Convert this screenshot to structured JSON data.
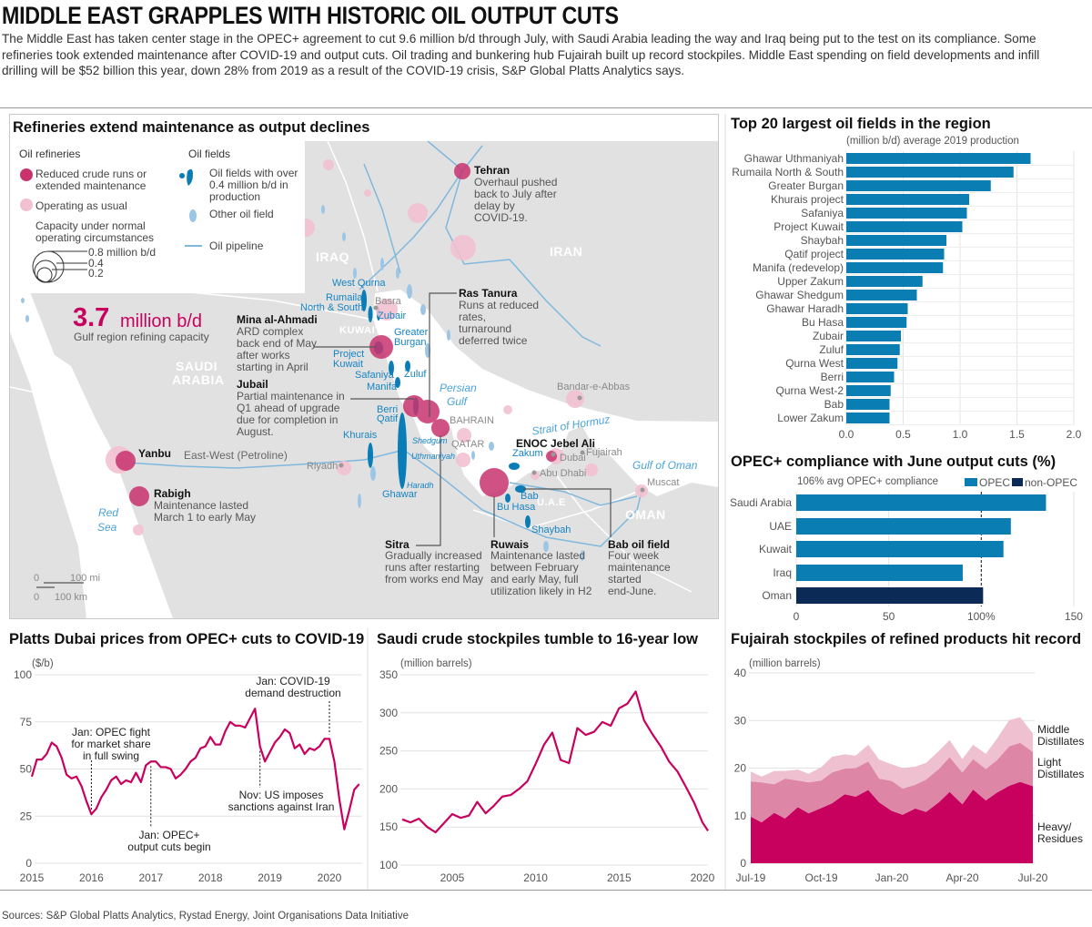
{
  "header": {
    "title": "MIDDLE EAST GRAPPLES WITH HISTORIC OIL OUTPUT CUTS",
    "intro": "The Middle East has taken center stage in the OPEC+ agreement to cut 9.6 million b/d through July, with Saudi Arabia leading the way and Iraq being put to the test on its compliance. Some refineries took extended maintenance after COVID-19 and output cuts. Oil trading and bunkering hub Fujairah built up record stockpiles. Middle East spending on field developments and infill drilling will be $52 billion this year, down 28% from 2019 as a result of the COVID-19 crisis, S&P Global Platts Analytics says."
  },
  "colors": {
    "accent": "#c8005e",
    "opec": "#0a7db3",
    "non_opec": "#0b2a55",
    "field": "#0a7db7",
    "field_light": "#9cc6e6",
    "land": "#e1e1e1",
    "pipeline": "#7fb8de",
    "refinery_reduced": "#c8336e",
    "refinery_normal": "#f2c1d1"
  },
  "map": {
    "title": "Refineries extend maintenance as output declines",
    "legend": {
      "refineries_title": "Oil refineries",
      "reduced": "Reduced crude runs or\nextended maintenance",
      "usual": "Operating as usual",
      "capacity": "Capacity under normal\noperating circumstances",
      "cap_08": "0.8 million b/d",
      "cap_04": "0.4",
      "cap_02": "0.2",
      "fields_title": "Oil fields",
      "big_field": "Oil fields with over\n0.4 million b/d in\nproduction",
      "other_field": "Other oil field",
      "pipeline": "Oil pipeline"
    },
    "capacity_value": "3.7",
    "capacity_unit": "million b/d",
    "capacity_label": "Gulf region refining capacity",
    "countries": {
      "iraq": "IRAQ",
      "iran": "IRAN",
      "saudi1": "SAUDI",
      "saudi2": "ARABIA",
      "kuwait": "KUWAIT",
      "bahrain": "BAHRAIN",
      "qatar": "QATAR",
      "uae": "U.A.E",
      "oman": "OMAN"
    },
    "seas": {
      "persian1": "Persian",
      "persian2": "Gulf",
      "red1": "Red",
      "red2": "Sea",
      "hormuz": "Strait of Hormuz",
      "oman": "Gulf of Oman"
    },
    "cities": {
      "basra": "Basra",
      "riyadh": "Riyadh",
      "dubai": "Dubai",
      "fujairah": "Fujairah",
      "abudhabi": "Abu Dhabi",
      "muscat": "Muscat",
      "bandar": "Bandar-e-Abbas"
    },
    "fields": {
      "west_qurna": "West Qurna",
      "rumaila1": "Rumaila",
      "rumaila2": "North & South",
      "zubair": "Zubair",
      "burgan1": "Greater",
      "burgan2": "Burgan",
      "pk1": "Project",
      "pk2": "Kuwait",
      "safaniya": "Safaniya",
      "zuluf": "Zuluf",
      "manifa": "Manifa",
      "berri": "Berri",
      "qatif": "Qatif",
      "khurais": "Khurais",
      "shedgum": "Shedgum",
      "uthmaniyah": "Uthmaniyah",
      "haradh": "Haradh",
      "ghawar": "Ghawar",
      "zakum": "Zakum",
      "bab": "Bab",
      "buhasa": "Bu Hasa",
      "shaybah": "Shaybah"
    },
    "pipeline_label": "East-West (Petroline)",
    "scale": {
      "zero_mi": "0",
      "mi": "100 mi",
      "zero_km": "0",
      "km": "100 km"
    },
    "annotations": {
      "tehran": {
        "name": "Tehran",
        "text": "Overhaul pushed\nback to July after\ndelay by\nCOVID-19."
      },
      "ras_tanura": {
        "name": "Ras Tanura",
        "text": "Runs at reduced\nrates,\nturnaround\ndeferred twice"
      },
      "mina": {
        "name": "Mina al-Ahmadi",
        "text": "ARD complex\nback end of May\nafter works\nstarting in April"
      },
      "jubail": {
        "name": "Jubail",
        "text": "Partial maintenance in\nQ1 ahead of upgrade\ndue for completion in\nAugust."
      },
      "yanbu": {
        "name": "Yanbu"
      },
      "rabigh": {
        "name": "Rabigh",
        "text": "Maintenance lasted\nMarch 1 to early May"
      },
      "enoc": {
        "name": "ENOC Jebel Ali"
      },
      "sitra": {
        "name": "Sitra",
        "text": "Gradually increased\nruns after restarting\nfrom works end May"
      },
      "ruwais": {
        "name": "Ruwais",
        "text": "Maintenance lasted\nbetween February\nand early May, full\nutilization likely in H2"
      },
      "bab": {
        "name": "Bab oil field",
        "text": "Four week\nmaintenance\nstarted\nend-June."
      }
    }
  },
  "chart_data": [
    {
      "id": "fields",
      "type": "bar",
      "orientation": "horizontal",
      "title": "Top 20 largest oil fields in the region",
      "subtitle": "(million b/d) average 2019 production",
      "categories": [
        "Ghawar Uthmaniyah",
        "Rumaila North & South",
        "Greater Burgan",
        "Khurais project",
        "Safaniya",
        "Project Kuwait",
        "Shaybah",
        "Qatif project",
        "Manifa (redevelop)",
        "Upper Zakum",
        "Ghawar Shedgum",
        "Ghawar Haradh",
        "Bu Hasa",
        "Zubair",
        "Zuluf",
        "Qurna West",
        "Berri",
        "Qurna West-2",
        "Bab",
        "Lower Zakum"
      ],
      "values": [
        1.62,
        1.47,
        1.27,
        1.08,
        1.06,
        1.02,
        0.88,
        0.86,
        0.85,
        0.67,
        0.62,
        0.54,
        0.53,
        0.48,
        0.47,
        0.45,
        0.42,
        0.39,
        0.38,
        0.38
      ],
      "xlim": [
        0,
        2.0
      ],
      "ticks": [
        "0.0",
        "0.5",
        "1.0",
        "1.5",
        "2.0"
      ],
      "grid": true
    },
    {
      "id": "compliance",
      "type": "bar",
      "orientation": "horizontal",
      "title": "OPEC+ compliance with June output cuts (%)",
      "annotation": "106% avg OPEC+ compliance",
      "legend": [
        {
          "name": "OPEC",
          "color": "#0a7db3"
        },
        {
          "name": "non-OPEC",
          "color": "#0b2a55"
        }
      ],
      "legend_position": "top-right",
      "categories": [
        "Saudi Arabia",
        "UAE",
        "Kuwait",
        "Iraq",
        "Oman"
      ],
      "groups": [
        "OPEC",
        "OPEC",
        "OPEC",
        "OPEC",
        "non-OPEC"
      ],
      "values": [
        135,
        116,
        112,
        90,
        101
      ],
      "xlim": [
        0,
        150
      ],
      "ticks": [
        "0",
        "50",
        "100%",
        "150"
      ],
      "reference_line": 100
    },
    {
      "id": "platts",
      "type": "line",
      "title": "Platts Dubai prices from OPEC+ cuts to COVID-19",
      "ylabel": "($/b)",
      "ylim": [
        0,
        100
      ],
      "yticks": [
        "0",
        "25",
        "50",
        "75",
        "100"
      ],
      "xticks": [
        "2015",
        "2016",
        "2017",
        "2018",
        "2019",
        "2020"
      ],
      "x": [
        "2015-01",
        "2015-02",
        "2015-03",
        "2015-04",
        "2015-05",
        "2015-06",
        "2015-07",
        "2015-08",
        "2015-09",
        "2015-10",
        "2015-11",
        "2015-12",
        "2016-01",
        "2016-02",
        "2016-03",
        "2016-04",
        "2016-05",
        "2016-06",
        "2016-07",
        "2016-08",
        "2016-09",
        "2016-10",
        "2016-11",
        "2016-12",
        "2017-01",
        "2017-02",
        "2017-03",
        "2017-04",
        "2017-05",
        "2017-06",
        "2017-07",
        "2017-08",
        "2017-09",
        "2017-10",
        "2017-11",
        "2017-12",
        "2018-01",
        "2018-02",
        "2018-03",
        "2018-04",
        "2018-05",
        "2018-06",
        "2018-07",
        "2018-08",
        "2018-09",
        "2018-10",
        "2018-11",
        "2018-12",
        "2019-01",
        "2019-02",
        "2019-03",
        "2019-04",
        "2019-05",
        "2019-06",
        "2019-07",
        "2019-08",
        "2019-09",
        "2019-10",
        "2019-11",
        "2019-12",
        "2020-01",
        "2020-02",
        "2020-03",
        "2020-04",
        "2020-05",
        "2020-06",
        "2020-07"
      ],
      "values": [
        46,
        55,
        55,
        58,
        64,
        62,
        56,
        47,
        45,
        46,
        41,
        33,
        26,
        29,
        35,
        39,
        44,
        46,
        42,
        44,
        43,
        48,
        43,
        52,
        54,
        54,
        51,
        51,
        50,
        45,
        47,
        50,
        54,
        56,
        61,
        62,
        67,
        63,
        63,
        70,
        75,
        73,
        73,
        72,
        77,
        82,
        62,
        54,
        59,
        64,
        67,
        71,
        69,
        61,
        63,
        58,
        61,
        60,
        62,
        66,
        66,
        54,
        34,
        18,
        28,
        39,
        42
      ],
      "annotations": [
        {
          "date": "2016-01",
          "text": "Jan: OPEC fight\nfor market share\nin full swing"
        },
        {
          "date": "2017-01",
          "text": "Jan: OPEC+\noutput cuts begin"
        },
        {
          "date": "2018-11",
          "text": "Nov: US imposes\nsanctions against Iran"
        },
        {
          "date": "2020-01",
          "text": "Jan: COVID-19\ndemand destruction"
        }
      ]
    },
    {
      "id": "saudi",
      "type": "line",
      "title": "Saudi crude stockpiles tumble to 16-year low",
      "ylabel": "(million barrels)",
      "ylim": [
        100,
        350
      ],
      "yticks": [
        "100",
        "150",
        "200",
        "250",
        "300",
        "350"
      ],
      "xticks": [
        "2005",
        "2010",
        "2015",
        "2020"
      ],
      "x": [
        "2002-01",
        "2002-07",
        "2003-01",
        "2003-07",
        "2004-01",
        "2004-07",
        "2005-01",
        "2005-07",
        "2006-01",
        "2006-07",
        "2007-01",
        "2007-07",
        "2008-01",
        "2008-07",
        "2009-01",
        "2009-07",
        "2010-01",
        "2010-07",
        "2011-01",
        "2011-07",
        "2012-01",
        "2012-07",
        "2013-01",
        "2013-07",
        "2014-01",
        "2014-07",
        "2015-01",
        "2015-07",
        "2016-01",
        "2016-07",
        "2017-01",
        "2017-07",
        "2018-01",
        "2018-07",
        "2019-01",
        "2019-07",
        "2020-01",
        "2020-05"
      ],
      "values": [
        160,
        156,
        161,
        150,
        143,
        155,
        167,
        162,
        165,
        183,
        168,
        178,
        190,
        192,
        200,
        210,
        233,
        258,
        274,
        238,
        234,
        280,
        271,
        275,
        288,
        283,
        306,
        312,
        328,
        290,
        272,
        256,
        236,
        223,
        203,
        182,
        156,
        145
      ]
    },
    {
      "id": "fujairah",
      "type": "area",
      "stacked": true,
      "title": "Fujairah stockpiles of refined products hit record",
      "ylabel": "(million barrels)",
      "ylim": [
        0,
        40
      ],
      "yticks": [
        "0",
        "10",
        "20",
        "30",
        "40"
      ],
      "xticks": [
        "Jul-19",
        "Oct-19",
        "Jan-20",
        "Apr-20",
        "Jul-20"
      ],
      "x": [
        "2019-07-01",
        "2019-07-15",
        "2019-08-01",
        "2019-08-15",
        "2019-09-01",
        "2019-09-15",
        "2019-10-01",
        "2019-10-15",
        "2019-11-01",
        "2019-11-15",
        "2019-12-01",
        "2019-12-15",
        "2020-01-01",
        "2020-01-15",
        "2020-02-01",
        "2020-02-15",
        "2020-03-01",
        "2020-03-15",
        "2020-04-01",
        "2020-04-15",
        "2020-05-01",
        "2020-05-15",
        "2020-06-01",
        "2020-06-15",
        "2020-07-01"
      ],
      "series": [
        {
          "name": "Heavy/\nResidues",
          "color": "#c8005e",
          "values": [
            9.8,
            8.6,
            10.6,
            9.4,
            11.8,
            10.5,
            11.6,
            12.6,
            14.5,
            14.0,
            15.4,
            12.8,
            11.0,
            10.2,
            11.5,
            10.8,
            12.8,
            15.0,
            12.4,
            15.5,
            13.2,
            14.8,
            16.3,
            17.1,
            16.2
          ]
        },
        {
          "name": "Light\nDistillates",
          "color": "#dd86a6",
          "values": [
            7.4,
            8.4,
            6.0,
            8.4,
            5.6,
            6.5,
            5.8,
            6.5,
            5.4,
            6.0,
            6.0,
            5.0,
            6.3,
            5.5,
            5.0,
            6.8,
            7.0,
            7.3,
            6.7,
            6.4,
            6.6,
            6.8,
            8.3,
            8.2,
            7.2
          ]
        },
        {
          "name": "Middle\nDistillates",
          "color": "#efc0cf",
          "values": [
            2.1,
            1.2,
            2.8,
            1.6,
            2.3,
            1.8,
            2.8,
            3.3,
            3.0,
            2.6,
            3.5,
            4.0,
            3.5,
            4.3,
            3.8,
            3.5,
            3.8,
            3.6,
            2.8,
            3.0,
            3.2,
            4.5,
            5.5,
            5.4,
            3.9
          ]
        }
      ]
    }
  ],
  "footer": {
    "sources": "Sources: S&P Global Platts Analytics, Rystad Energy, Joint Organisations Data Initiative"
  }
}
